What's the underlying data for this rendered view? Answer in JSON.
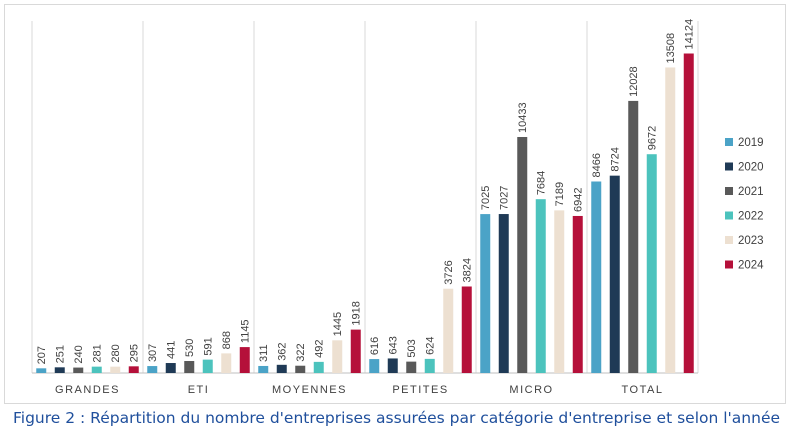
{
  "chart_data": {
    "type": "bar",
    "title": "",
    "xlabel": "",
    "ylabel": "",
    "ylim": [
      0,
      14500
    ],
    "grid": false,
    "legend_position": "right",
    "categories": [
      "GRANDES",
      "ETI",
      "MOYENNES",
      "PETITES",
      "MICRO",
      "TOTAL"
    ],
    "series": [
      {
        "name": "2019",
        "color": "#4ba3c7",
        "values": [
          207,
          307,
          311,
          616,
          7025,
          8466
        ]
      },
      {
        "name": "2020",
        "color": "#1f3a56",
        "values": [
          251,
          441,
          362,
          643,
          7027,
          8724
        ]
      },
      {
        "name": "2021",
        "color": "#595959",
        "values": [
          240,
          530,
          322,
          503,
          10433,
          12028
        ]
      },
      {
        "name": "2022",
        "color": "#4cc3bd",
        "values": [
          281,
          591,
          492,
          624,
          7684,
          9672
        ]
      },
      {
        "name": "2023",
        "color": "#ede0d1",
        "values": [
          280,
          868,
          1445,
          3726,
          7189,
          13508
        ]
      },
      {
        "name": "2024",
        "color": "#b5103a",
        "values": [
          295,
          1145,
          1918,
          3824,
          6942,
          14124
        ]
      }
    ]
  },
  "caption": "Figure 2 : Répartition du nombre d'entreprises assurées par catégorie d'entreprise et selon l'année"
}
